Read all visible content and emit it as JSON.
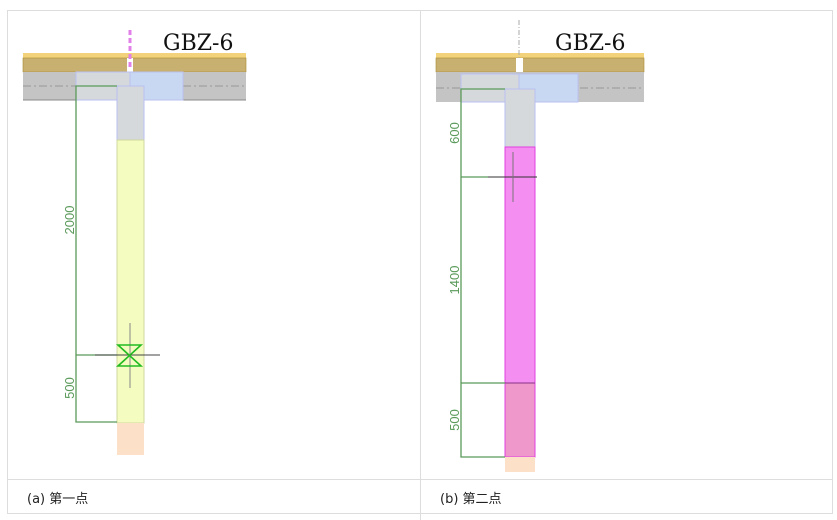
{
  "figures": [
    {
      "title": "GBZ-6",
      "caption": "(a)  第一点",
      "dimensions": [
        "2000",
        "500"
      ],
      "column_color": "#f5fcc0"
    },
    {
      "title": "GBZ-6",
      "caption": "(b)  第二点",
      "dimensions": [
        "600",
        "1400",
        "500"
      ],
      "column_color": "#f48ef0"
    }
  ],
  "colors": {
    "dimension": "#5a9a5a",
    "slab": "#c8b070",
    "wall": "#c4c4c4",
    "beam": "#c9d8f2",
    "base": "#fde0c8"
  }
}
